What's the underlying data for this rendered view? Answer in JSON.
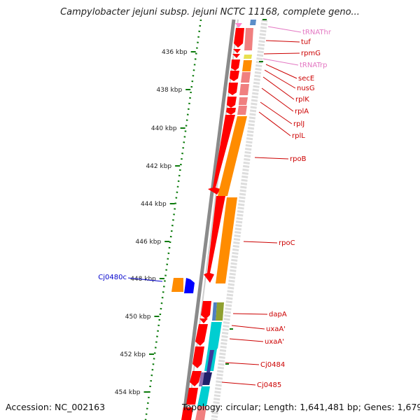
{
  "title": "Campylobacter jejuni subsp. jejuni NCTC 11168, complete geno...",
  "footer": {
    "accession": "Accession: NC_002163",
    "topology": "Topology: circular; Length: 1,641,481 bp; Genes: 1,679"
  },
  "colors": {
    "tick": "#0a7a0a",
    "backbone": "#888888",
    "gene_red": "#ff0000",
    "orange": "#ff8c00",
    "salmon": "#f08080",
    "trna_pink": "#e377c2",
    "label_red": "#cc0000",
    "label_blue": "#0000cc",
    "cyan": "#00ced1",
    "blue": "#0000ff"
  },
  "ticks": [
    "436 kbp",
    "438 kbp",
    "440 kbp",
    "442 kbp",
    "444 kbp",
    "446 kbp",
    "448 kbp",
    "450 kbp",
    "452 kbp",
    "454 kbp"
  ],
  "genes": [
    {
      "name": "tRNAThr",
      "type": "trna"
    },
    {
      "name": "tuf",
      "type": "gene"
    },
    {
      "name": "rpmG",
      "type": "gene"
    },
    {
      "name": "tRNATrp",
      "type": "trna"
    },
    {
      "name": "secE",
      "type": "gene"
    },
    {
      "name": "nusG",
      "type": "gene"
    },
    {
      "name": "rplK",
      "type": "gene"
    },
    {
      "name": "rplA",
      "type": "gene"
    },
    {
      "name": "rplJ",
      "type": "gene"
    },
    {
      "name": "rplL",
      "type": "gene"
    },
    {
      "name": "rpoB",
      "type": "gene"
    },
    {
      "name": "rpoC",
      "type": "gene"
    },
    {
      "name": "dapA",
      "type": "gene"
    },
    {
      "name": "uxaA'",
      "type": "gene"
    },
    {
      "name": "uxaA'",
      "type": "gene"
    },
    {
      "name": "Cj0484",
      "type": "gene"
    },
    {
      "name": "Cj0485",
      "type": "gene"
    }
  ],
  "left_gene": {
    "name": "Cj0480c",
    "type": "gene"
  }
}
